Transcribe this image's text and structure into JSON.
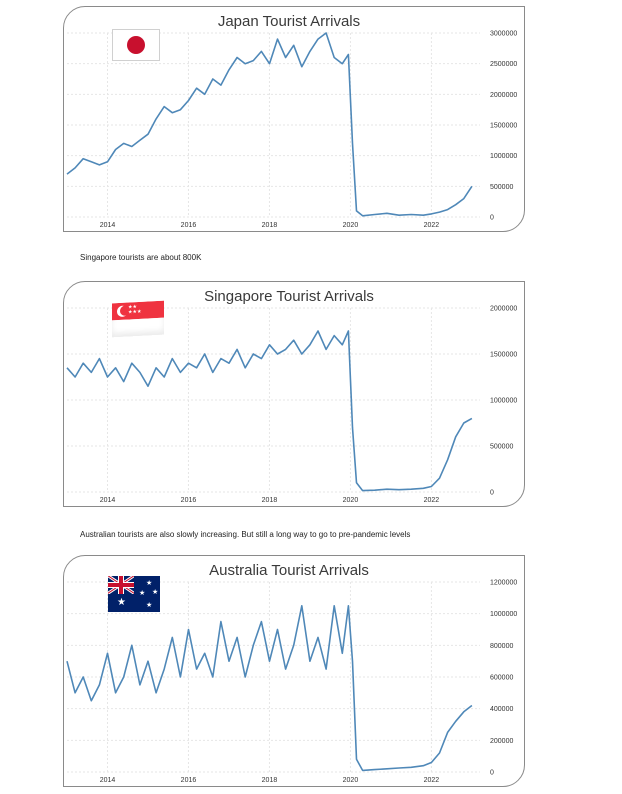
{
  "captions": {
    "singapore_note": "Singapore tourists are about 800K",
    "australia_note": "Australian tourists are also slowly increasing. But still a long way to go to pre-pandemic levels"
  },
  "colors": {
    "line": "#4f88b8",
    "grid": "#e6e6e6",
    "border": "#8a8a8a"
  },
  "chart_data": [
    {
      "type": "line",
      "title": "Japan Tourist Arrivals",
      "flag": "japan-flag",
      "x_ticks": [
        "2014",
        "2016",
        "2018",
        "2020",
        "2022"
      ],
      "y_ticks": [
        "3000000",
        "2500000",
        "2000000",
        "1500000",
        "1000000",
        "500000",
        "0"
      ],
      "ylim": [
        0,
        3000000
      ],
      "xlim": [
        2013,
        2023.2
      ],
      "series": [
        {
          "x": [
            2013.0,
            2013.2,
            2013.4,
            2013.6,
            2013.8,
            2014.0,
            2014.2,
            2014.4,
            2014.6,
            2014.8,
            2015.0,
            2015.2,
            2015.4,
            2015.6,
            2015.8,
            2016.0,
            2016.2,
            2016.4,
            2016.6,
            2016.8,
            2017.0,
            2017.2,
            2017.4,
            2017.6,
            2017.8,
            2018.0,
            2018.2,
            2018.4,
            2018.6,
            2018.8,
            2019.0,
            2019.2,
            2019.4,
            2019.6,
            2019.8,
            2019.95,
            2020.05,
            2020.15,
            2020.3,
            2020.6,
            2020.9,
            2021.2,
            2021.5,
            2021.8,
            2022.0,
            2022.2,
            2022.4,
            2022.6,
            2022.8,
            2023.0
          ],
          "y": [
            700000,
            800000,
            950000,
            900000,
            850000,
            900000,
            1100000,
            1200000,
            1150000,
            1250000,
            1350000,
            1600000,
            1800000,
            1700000,
            1750000,
            1900000,
            2100000,
            2000000,
            2250000,
            2150000,
            2400000,
            2600000,
            2500000,
            2550000,
            2700000,
            2500000,
            2900000,
            2600000,
            2800000,
            2450000,
            2700000,
            2900000,
            3000000,
            2600000,
            2500000,
            2650000,
            1200000,
            100000,
            20000,
            40000,
            60000,
            30000,
            40000,
            30000,
            50000,
            80000,
            120000,
            200000,
            300000,
            500000
          ]
        }
      ]
    },
    {
      "type": "line",
      "title": "Singapore Tourist Arrivals",
      "flag": "singapore-flag",
      "x_ticks": [
        "2014",
        "2016",
        "2018",
        "2020",
        "2022"
      ],
      "y_ticks": [
        "2000000",
        "1500000",
        "1000000",
        "500000",
        "0"
      ],
      "ylim": [
        0,
        2000000
      ],
      "xlim": [
        2013,
        2023.2
      ],
      "series": [
        {
          "x": [
            2013.0,
            2013.2,
            2013.4,
            2013.6,
            2013.8,
            2014.0,
            2014.2,
            2014.4,
            2014.6,
            2014.8,
            2015.0,
            2015.2,
            2015.4,
            2015.6,
            2015.8,
            2016.0,
            2016.2,
            2016.4,
            2016.6,
            2016.8,
            2017.0,
            2017.2,
            2017.4,
            2017.6,
            2017.8,
            2018.0,
            2018.2,
            2018.4,
            2018.6,
            2018.8,
            2019.0,
            2019.2,
            2019.4,
            2019.6,
            2019.8,
            2019.95,
            2020.05,
            2020.15,
            2020.3,
            2020.6,
            2020.9,
            2021.2,
            2021.5,
            2021.8,
            2022.0,
            2022.2,
            2022.4,
            2022.6,
            2022.8,
            2023.0
          ],
          "y": [
            1350000,
            1250000,
            1400000,
            1300000,
            1450000,
            1250000,
            1350000,
            1200000,
            1400000,
            1300000,
            1150000,
            1350000,
            1250000,
            1450000,
            1300000,
            1400000,
            1350000,
            1500000,
            1300000,
            1450000,
            1400000,
            1550000,
            1350000,
            1500000,
            1450000,
            1600000,
            1500000,
            1550000,
            1650000,
            1500000,
            1600000,
            1750000,
            1550000,
            1700000,
            1600000,
            1750000,
            700000,
            100000,
            15000,
            20000,
            30000,
            25000,
            30000,
            40000,
            60000,
            150000,
            350000,
            600000,
            750000,
            800000
          ]
        }
      ]
    },
    {
      "type": "line",
      "title": "Australia Tourist Arrivals",
      "flag": "australia-flag",
      "x_ticks": [
        "2014",
        "2016",
        "2018",
        "2020",
        "2022"
      ],
      "y_ticks": [
        "1200000",
        "1000000",
        "800000",
        "600000",
        "400000",
        "200000",
        "0"
      ],
      "ylim": [
        0,
        1200000
      ],
      "xlim": [
        2013,
        2023.2
      ],
      "series": [
        {
          "x": [
            2013.0,
            2013.2,
            2013.4,
            2013.6,
            2013.8,
            2014.0,
            2014.2,
            2014.4,
            2014.6,
            2014.8,
            2015.0,
            2015.2,
            2015.4,
            2015.6,
            2015.8,
            2016.0,
            2016.2,
            2016.4,
            2016.6,
            2016.8,
            2017.0,
            2017.2,
            2017.4,
            2017.6,
            2017.8,
            2018.0,
            2018.2,
            2018.4,
            2018.6,
            2018.8,
            2019.0,
            2019.2,
            2019.4,
            2019.6,
            2019.8,
            2019.95,
            2020.05,
            2020.15,
            2020.3,
            2020.6,
            2020.9,
            2021.2,
            2021.5,
            2021.8,
            2022.0,
            2022.2,
            2022.4,
            2022.6,
            2022.8,
            2023.0
          ],
          "y": [
            700000,
            500000,
            600000,
            450000,
            550000,
            750000,
            500000,
            600000,
            800000,
            550000,
            700000,
            500000,
            650000,
            850000,
            600000,
            900000,
            650000,
            750000,
            600000,
            950000,
            700000,
            850000,
            600000,
            800000,
            950000,
            700000,
            900000,
            650000,
            800000,
            1050000,
            700000,
            850000,
            650000,
            1050000,
            750000,
            1050000,
            700000,
            80000,
            10000,
            15000,
            20000,
            25000,
            30000,
            40000,
            60000,
            120000,
            250000,
            320000,
            380000,
            420000
          ]
        }
      ]
    }
  ]
}
